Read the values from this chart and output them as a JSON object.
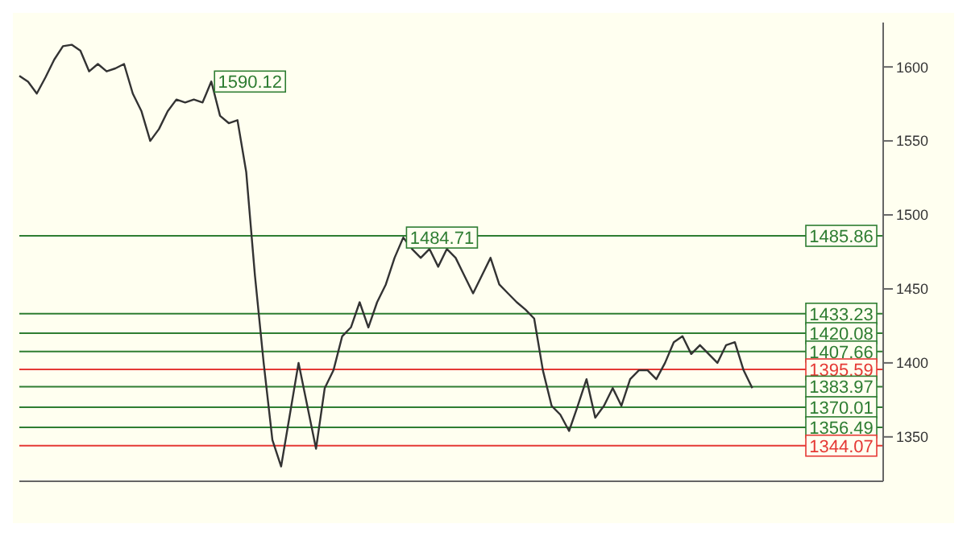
{
  "chart_data": {
    "type": "line",
    "categories": [
      null,
      null,
      null,
      null,
      null,
      null,
      null,
      null,
      null,
      null,
      null,
      null,
      null,
      null,
      null,
      null,
      null,
      null,
      null,
      null,
      null,
      null,
      null,
      null,
      null,
      null,
      null,
      null,
      null,
      null,
      null,
      null,
      null,
      null,
      null,
      null,
      null,
      null,
      null,
      null,
      null,
      null,
      null,
      null,
      null,
      null,
      null,
      null,
      null,
      null,
      null,
      null,
      null,
      null,
      null,
      null,
      null,
      null,
      null,
      null,
      null,
      null,
      null,
      null,
      null,
      null,
      null,
      null,
      null,
      null,
      null,
      null,
      null,
      null,
      null,
      null,
      null,
      null,
      null,
      null,
      null,
      null,
      null,
      null,
      null,
      null,
      null,
      null,
      null,
      null,
      null,
      null,
      null,
      null,
      null,
      null,
      null,
      null,
      null,
      null
    ],
    "series": [
      {
        "color": "#333333",
        "values": [
          1594,
          1590,
          1582,
          1593,
          1605,
          1614,
          1615,
          1611,
          1597,
          1602,
          1597,
          1599,
          1602,
          1582,
          1570,
          1550,
          1558,
          1570,
          1578,
          1576,
          1578,
          1576,
          1590.12,
          1567,
          1562,
          1564,
          1529,
          1459,
          1400,
          1348,
          1330,
          1365,
          1400,
          1371,
          1342,
          1383,
          1395,
          1418,
          1424,
          1441,
          1424,
          1441,
          1453,
          1471,
          1484.71,
          1477,
          1471,
          1477,
          1465,
          1477,
          1471,
          1459,
          1447,
          1459,
          1471,
          1453,
          1447,
          1441,
          1436,
          1430,
          1395,
          1371,
          1365,
          1354,
          1371,
          1389,
          1363,
          1371,
          1383,
          1371,
          1389,
          1395,
          1395,
          1389,
          1400,
          1414,
          1418,
          1406,
          1412,
          1406,
          1400,
          1412,
          1414,
          1395,
          1383,
          null,
          null,
          null,
          null,
          null,
          null,
          null,
          null,
          null,
          null,
          null,
          null,
          null,
          null,
          null
        ],
        "value_labels": [
          null,
          null,
          null,
          null,
          null,
          null,
          null,
          null,
          null,
          null,
          null,
          null,
          null,
          null,
          null,
          null,
          null,
          null,
          null,
          null,
          null,
          null,
          "1590.12",
          null,
          null,
          null,
          null,
          null,
          null,
          null,
          null,
          null,
          null,
          null,
          null,
          null,
          null,
          null,
          null,
          null,
          null,
          null,
          null,
          null,
          "1484.71",
          null,
          null,
          null,
          null,
          null,
          null,
          null,
          null,
          null,
          null,
          null,
          null,
          null,
          null,
          null,
          null,
          null,
          null,
          null,
          null,
          null,
          null,
          null,
          null,
          null,
          null,
          null,
          null,
          null,
          null,
          null,
          null,
          null,
          null,
          null,
          null,
          null,
          null,
          null,
          null,
          null,
          null,
          null,
          null,
          null,
          null,
          null,
          null,
          null,
          null,
          null,
          null,
          null,
          null,
          null
        ]
      }
    ],
    "ylim": [
      1320,
      1630
    ],
    "yticks": [
      1350,
      1400,
      1450,
      1500,
      1550,
      1600
    ],
    "grid": false,
    "marker": "none",
    "line_style": "solid",
    "ref_lines": [
      {
        "axis": "y",
        "value": 1485.86,
        "label": "1485.86",
        "color": "#2e7d32"
      },
      {
        "axis": "y",
        "value": 1433.23,
        "label": "1433.23",
        "color": "#2e7d32"
      },
      {
        "axis": "y",
        "value": 1420.08,
        "label": "1420.08",
        "color": "#2e7d32"
      },
      {
        "axis": "y",
        "value": 1407.66,
        "label": "1407.66",
        "color": "#2e7d32"
      },
      {
        "axis": "y",
        "value": 1395.59,
        "label": "1395.59",
        "color": "#e53935"
      },
      {
        "axis": "y",
        "value": 1383.97,
        "label": "1383.97",
        "color": "#2e7d32"
      },
      {
        "axis": "y",
        "value": 1370.01,
        "label": "1370.01",
        "color": "#2e7d32"
      },
      {
        "axis": "y",
        "value": 1356.49,
        "label": "1356.49",
        "color": "#2e7d32"
      },
      {
        "axis": "y",
        "value": 1344.07,
        "label": "1344.07",
        "color": "#e53935"
      }
    ]
  }
}
